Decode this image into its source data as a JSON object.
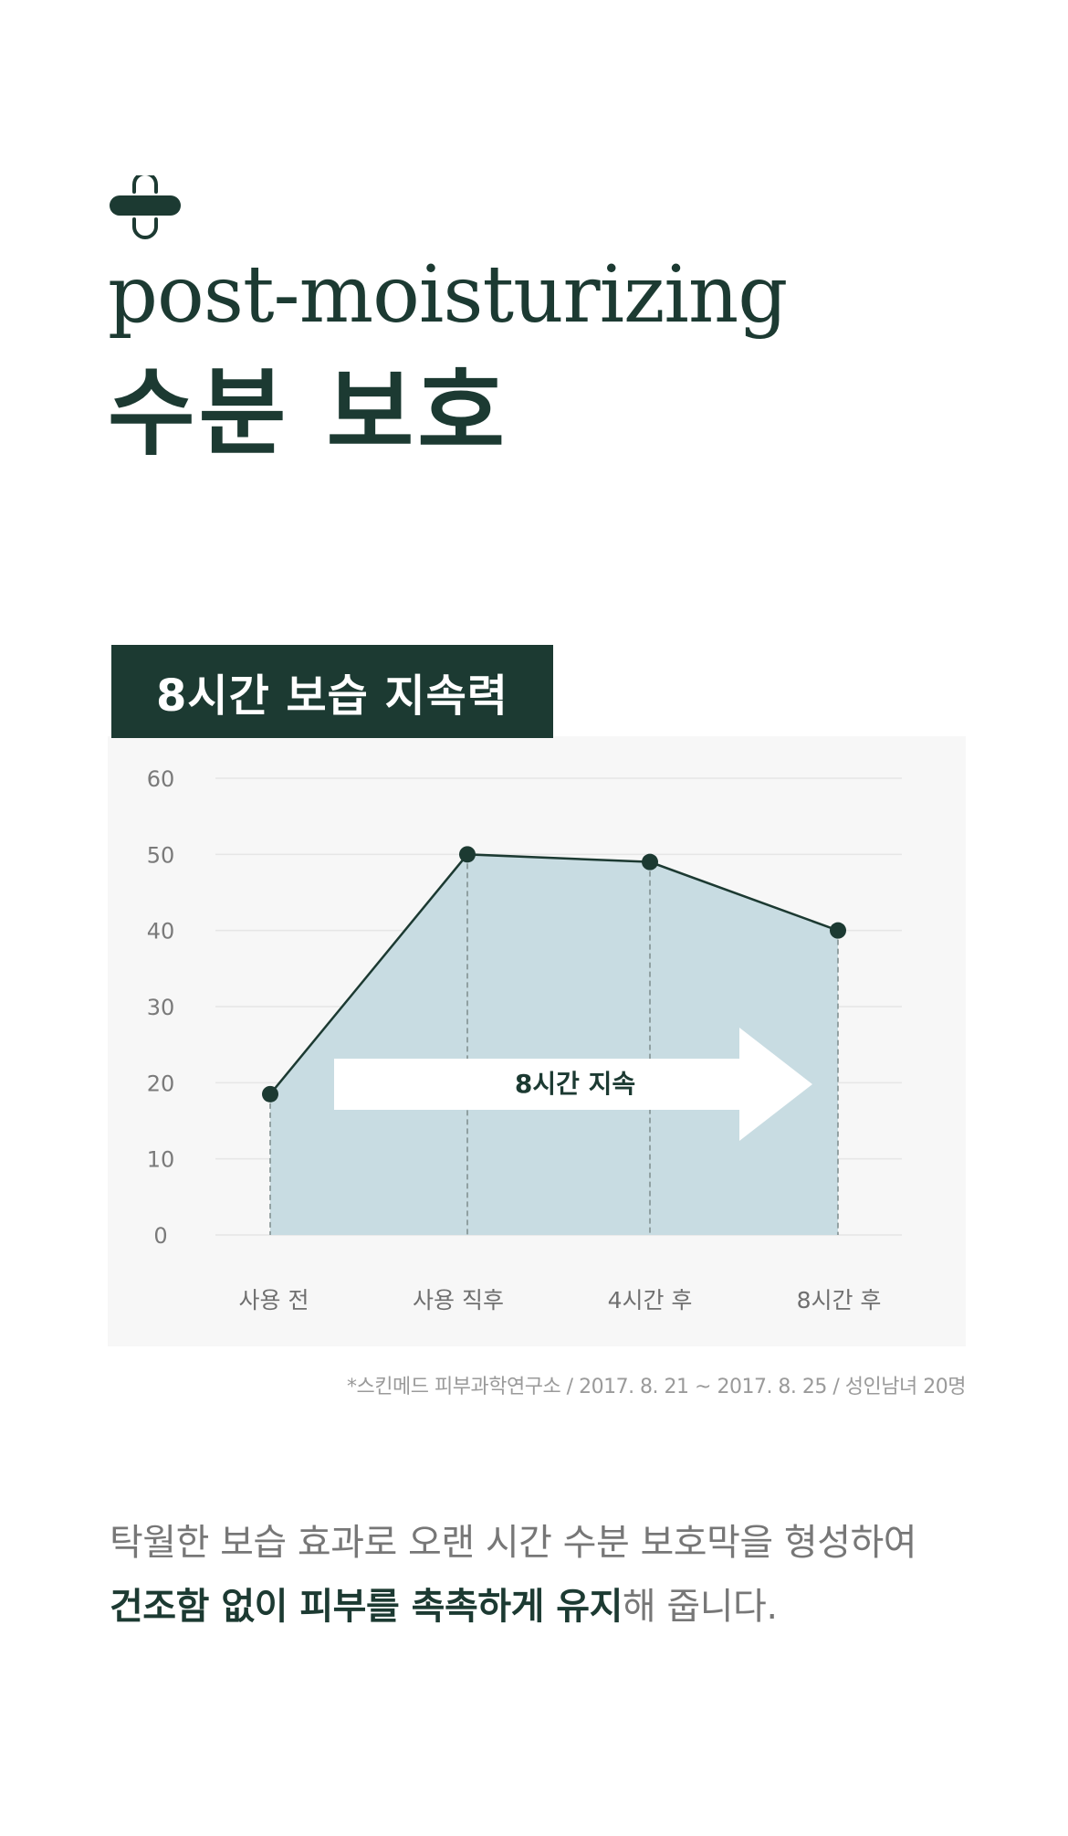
{
  "header": {
    "subtitle_en": "post-moisturizing",
    "title_ko": "수분 보호"
  },
  "chart": {
    "banner_label": "8시간 보습 지속력",
    "arrow_label": "8시간 지속",
    "source_note": "*스킨메드 피부과학연구소 / 2017. 8. 21 ~ 2017. 8. 25 / 성인남녀 20명"
  },
  "chart_data": {
    "type": "area",
    "categories": [
      "사용 전",
      "사용 직후",
      "4시간 후",
      "8시간 후"
    ],
    "series": [
      {
        "values": [
          18.5,
          50,
          49,
          40
        ]
      }
    ],
    "yticks": [
      "0",
      "10",
      "20",
      "30",
      "40",
      "50",
      "60"
    ],
    "ylim": [
      0,
      60
    ],
    "grid": true,
    "colors": {
      "fill": "#c8dce2",
      "line": "#1c3a32",
      "point": "#1c3a32",
      "grid": "#e6e6e6",
      "drop_line": "#7d8c8c",
      "arrow": "#ffffff"
    }
  },
  "description": {
    "line1": "탁월한 보습 효과로 오랜 시간 수분 보호막을 형성하여",
    "line2_strong": "건조함 없이 피부를 촉촉하게 유지",
    "line2_rest": "해 줍니다."
  },
  "theme": {
    "primary": "#1c3a32",
    "muted_text": "#777777",
    "panel_bg": "#f7f7f7"
  }
}
